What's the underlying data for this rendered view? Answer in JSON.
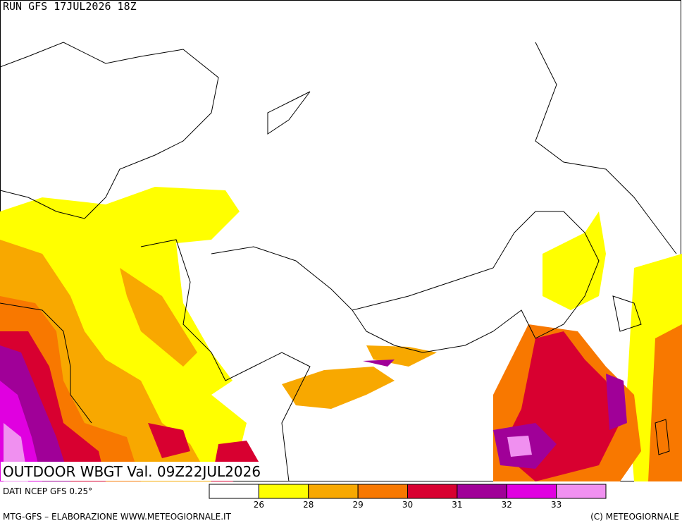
{
  "header": {
    "run": "RUN GFS 17JUL2026 18Z"
  },
  "map": {
    "title": "OUTDOOR WBGT Val. 09Z22JUL2026"
  },
  "legend": {
    "source": "DATI NCEP GFS 0.25°",
    "colors": [
      "#ffffff",
      "#ffff00",
      "#f8a800",
      "#f87800",
      "#d80030",
      "#a00098",
      "#e000e0",
      "#f090f0"
    ],
    "ticks": [
      26,
      28,
      29,
      30,
      31,
      32,
      33
    ]
  },
  "footer": {
    "left": "MTG-GFS – ELABORAZIONE WWW.METEOGIORNALE.IT",
    "right": "(C) METEOGIORNALE"
  }
}
